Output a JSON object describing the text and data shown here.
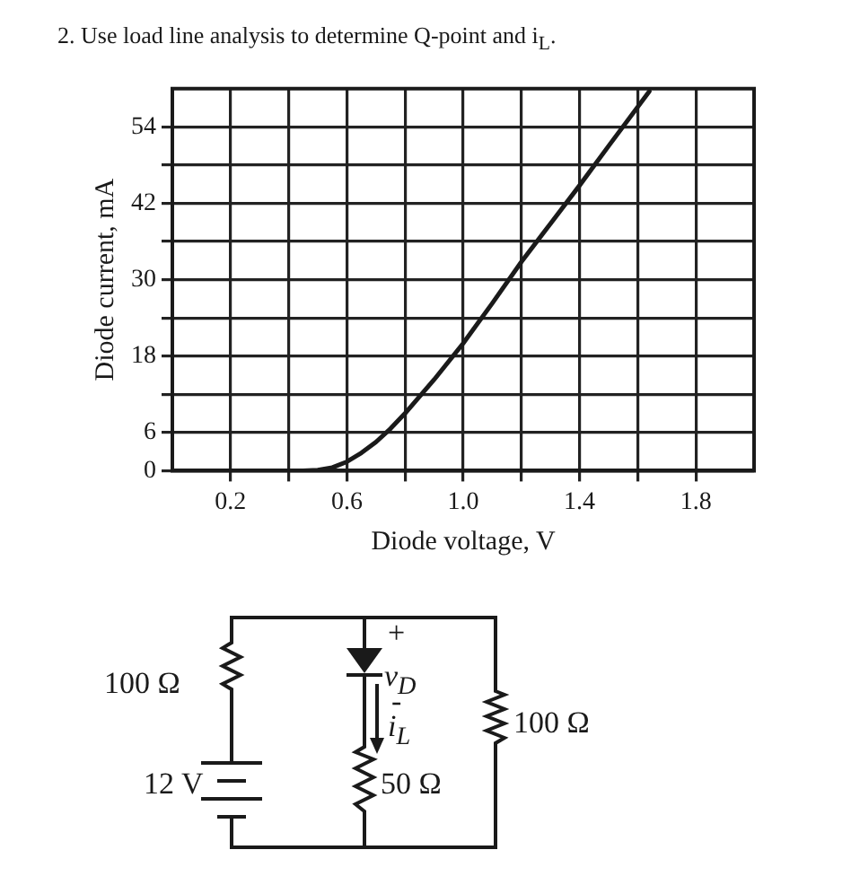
{
  "chart_data": {
    "type": "line",
    "title": "2. Use load line analysis to determine Q-point and i$_{L}$.",
    "xlabel": "Diode voltage, V",
    "ylabel": "Diode current, mA",
    "x": [
      0.45,
      0.5,
      0.55,
      0.6,
      0.65,
      0.7,
      0.75,
      0.8,
      0.9,
      1.0,
      1.1,
      1.2,
      1.3,
      1.4,
      1.5,
      1.64
    ],
    "series": [
      {
        "color": "#1a1a1a",
        "values": [
          0,
          0.1,
          0.5,
          1.4,
          2.8,
          4.5,
          6.6,
          9,
          14.3,
          20,
          26.3,
          32.8,
          38.8,
          44.8,
          51,
          59.6
        ]
      }
    ],
    "xlim": [
      0,
      2.0
    ],
    "xticks": [
      {
        "value": 0.2,
        "label": "0.2"
      },
      {
        "value": 0.4,
        "label": null
      },
      {
        "value": 0.6,
        "label": "0.6"
      },
      {
        "value": 0.8,
        "label": null
      },
      {
        "value": 1.0,
        "label": "1.0"
      },
      {
        "value": 1.2,
        "label": null
      },
      {
        "value": 1.4,
        "label": "1.4"
      },
      {
        "value": 1.6,
        "label": null
      },
      {
        "value": 1.8,
        "label": "1.8"
      }
    ],
    "ylim": [
      0,
      60
    ],
    "yticks": [
      0,
      6,
      {
        "value": 12,
        "label": null
      },
      18,
      {
        "value": 24,
        "label": null
      },
      30,
      {
        "value": 36,
        "label": null
      },
      42,
      {
        "value": 48,
        "label": null
      },
      54
    ],
    "grid": true,
    "marker": "none",
    "line_style": "solid",
    "legend": false,
    "annotations": [
      "100 Ω",
      "12 V",
      "+",
      "v$_{D}$",
      "-",
      "i$_{L}$",
      "50 Ω",
      "100 Ω"
    ]
  }
}
